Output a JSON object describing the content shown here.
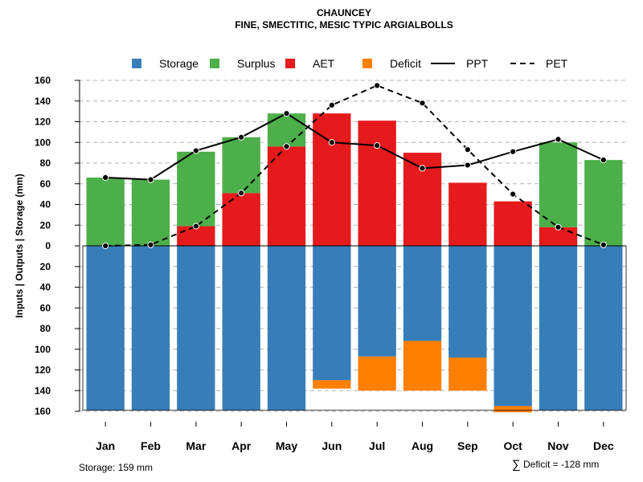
{
  "chart_data": {
    "type": "bar",
    "title": "CHAUNCEY",
    "subtitle": "FINE, SMECTITIC, MESIC TYPIC ARGIALBOLLS",
    "ylabel": "Inputs | Outputs | Storage    (mm)",
    "categories": [
      "Jan",
      "Feb",
      "Mar",
      "Apr",
      "May",
      "Jun",
      "Jul",
      "Aug",
      "Sep",
      "Oct",
      "Nov",
      "Dec"
    ],
    "y_ticks": [
      "160",
      "140",
      "120",
      "100",
      "80",
      "60",
      "40",
      "20",
      "0",
      "20",
      "40",
      "60",
      "80",
      "100",
      "120",
      "140",
      "160"
    ],
    "ylim_top": [
      0,
      160
    ],
    "ylim_bottom": [
      0,
      160
    ],
    "grid": true,
    "legend": [
      {
        "label": "Storage",
        "kind": "square",
        "color": "#377EB8"
      },
      {
        "label": "Surplus",
        "kind": "square",
        "color": "#4DAF4A"
      },
      {
        "label": "AET",
        "kind": "square",
        "color": "#E41A1C"
      },
      {
        "label": "Deficit",
        "kind": "square",
        "color": "#FF7F00"
      },
      {
        "label": "PPT",
        "kind": "solid-line",
        "color": "#000000"
      },
      {
        "label": "PET",
        "kind": "dashed-line",
        "color": "#000000"
      }
    ],
    "series": [
      {
        "name": "AET",
        "values": [
          0,
          0,
          19,
          51,
          96,
          128,
          121,
          90,
          61,
          43,
          18,
          0
        ]
      },
      {
        "name": "Surplus",
        "values": [
          66,
          64,
          72,
          54,
          32,
          0,
          0,
          0,
          0,
          0,
          82,
          83
        ]
      },
      {
        "name": "Storage",
        "values": [
          159,
          159,
          159,
          159,
          159,
          130,
          107,
          92,
          108,
          155,
          159,
          159
        ]
      },
      {
        "name": "Deficit",
        "values": [
          0,
          0,
          0,
          0,
          0,
          8,
          33,
          48,
          32,
          6,
          0,
          0
        ]
      },
      {
        "name": "PPT",
        "values": [
          66,
          64,
          92,
          105,
          128,
          100,
          97,
          75,
          78,
          91,
          103,
          83
        ]
      },
      {
        "name": "PET",
        "values": [
          0,
          1,
          19,
          51,
          96,
          136,
          155,
          138,
          93,
          50,
          18,
          1
        ]
      }
    ],
    "storage_capacity": 159,
    "footnote_left": "Storage: 159 mm",
    "footnote_right_symbol": "∑",
    "footnote_right": "Deficit = -128 mm"
  },
  "colors": {
    "storage": "#377EB8",
    "surplus": "#4DAF4A",
    "aet": "#E41A1C",
    "deficit": "#FF7F00",
    "line": "#000000",
    "grid": "#b0b0b0"
  }
}
